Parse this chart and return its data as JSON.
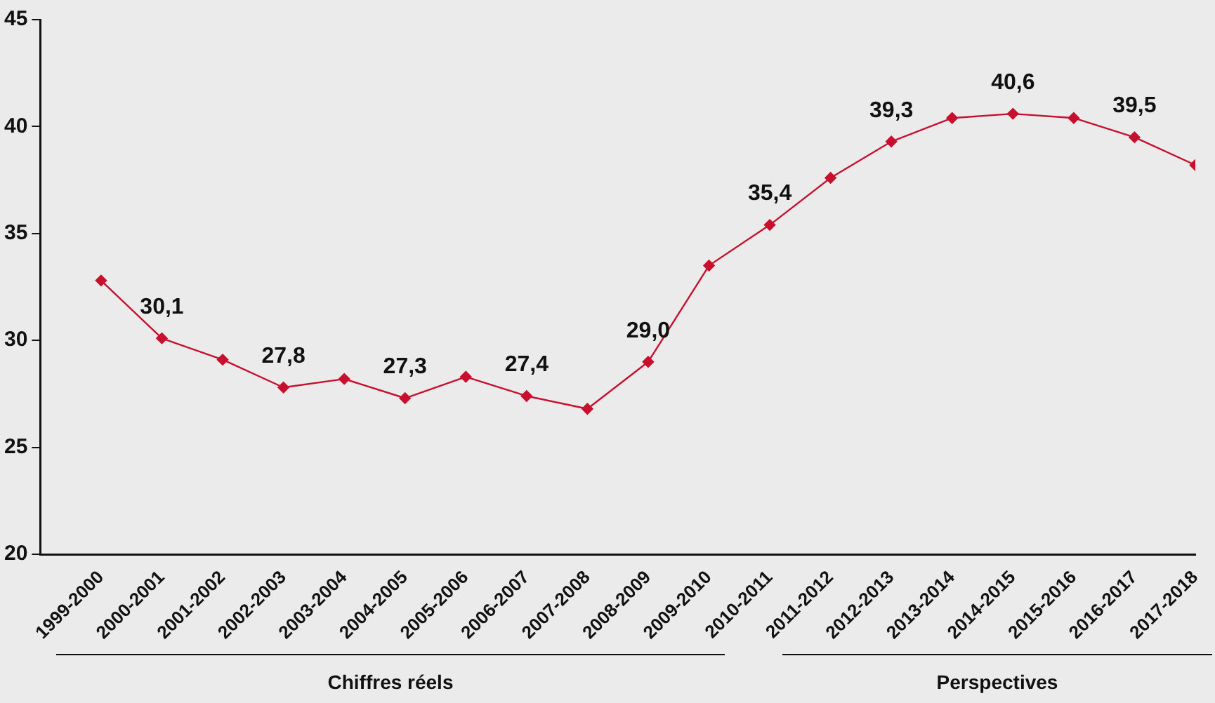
{
  "chart_data": {
    "type": "line",
    "categories": [
      "1999-2000",
      "2000-2001",
      "2001-2002",
      "2002-2003",
      "2003-2004",
      "2004-2005",
      "2005-2006",
      "2006-2007",
      "2007-2008",
      "2008-2009",
      "2009-2010",
      "2010-2011",
      "2011-2012",
      "2012-2013",
      "2013-2014",
      "2014-2015",
      "2015-2016",
      "2016-2017",
      "2017-2018"
    ],
    "series": [
      {
        "color": "#c8102e",
        "values": [
          32.8,
          30.1,
          29.1,
          27.8,
          28.2,
          27.3,
          28.3,
          27.4,
          26.8,
          29.0,
          33.5,
          35.4,
          37.6,
          39.3,
          40.4,
          40.6,
          40.4,
          39.5,
          38.2
        ],
        "value_labels": [
          null,
          "30,1",
          null,
          "27,8",
          null,
          "27,3",
          null,
          "27,4",
          null,
          "29,0",
          null,
          "35,4",
          null,
          "39,3",
          null,
          "40,6",
          null,
          "39,5",
          null
        ]
      }
    ],
    "ylim": [
      20,
      45
    ],
    "yticks": [
      20,
      25,
      30,
      35,
      40,
      45
    ],
    "grid": false,
    "legend": false,
    "marker": "diamond",
    "line_style": "solid",
    "annotations": [
      "Chiffres réels",
      "Perspectives"
    ]
  }
}
